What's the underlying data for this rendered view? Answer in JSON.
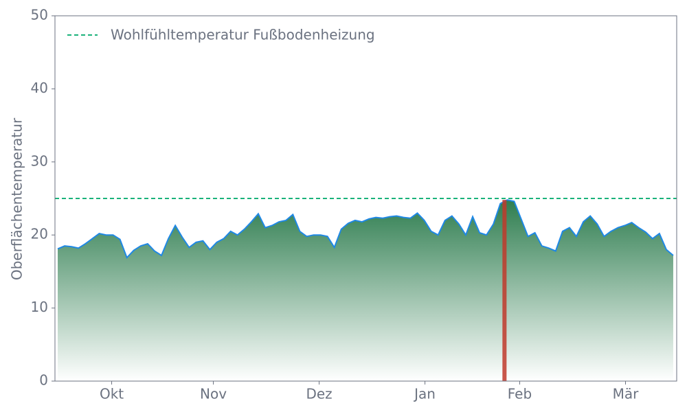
{
  "chart_data": {
    "type": "area-line",
    "ylabel": "Oberflächentemperatur",
    "values": [
      18.1,
      18.5,
      18.4,
      18.2,
      18.8,
      19.5,
      20.2,
      20.0,
      20.0,
      19.4,
      16.9,
      17.9,
      18.5,
      18.8,
      17.8,
      17.2,
      19.5,
      21.3,
      19.7,
      18.3,
      19.0,
      19.2,
      18.0,
      19.0,
      19.5,
      20.5,
      20.0,
      20.8,
      21.8,
      22.9,
      21.0,
      21.3,
      21.8,
      22.0,
      22.8,
      20.5,
      19.8,
      20.0,
      20.0,
      19.8,
      18.3,
      20.8,
      21.6,
      22.0,
      21.8,
      22.2,
      22.4,
      22.3,
      22.5,
      22.6,
      22.4,
      22.3,
      23.0,
      22.0,
      20.5,
      20.0,
      22.0,
      22.6,
      21.5,
      20.0,
      22.5,
      20.3,
      20.0,
      21.5,
      24.3,
      24.8,
      24.6,
      22.2,
      19.8,
      20.3,
      18.5,
      18.2,
      17.8,
      20.5,
      21.0,
      19.8,
      21.8,
      22.6,
      21.5,
      19.8,
      20.5,
      21.0,
      21.3,
      21.7,
      21.0,
      20.4,
      19.5,
      20.2,
      18.0,
      17.2
    ],
    "line_color": "#1f88e5",
    "fill_top": "#2e7d4f",
    "fill_bottom": "#ffffff",
    "xlim": [
      -0.4,
      89.5
    ],
    "xticks": [
      {
        "value": 7.8,
        "label": "Okt"
      },
      {
        "value": 22.5,
        "label": "Nov"
      },
      {
        "value": 37.8,
        "label": "Dez"
      },
      {
        "value": 53.1,
        "label": "Jan"
      },
      {
        "value": 66.8,
        "label": "Feb"
      },
      {
        "value": 82.1,
        "label": "Mär"
      }
    ],
    "ylim": [
      0,
      50
    ],
    "yticks": [
      0,
      10,
      20,
      30,
      40,
      50
    ],
    "grid": false,
    "hline": {
      "value": 25,
      "label": "Wohlfühltemperatur Fußbodenheizung",
      "color": "#1ab27a"
    },
    "marker": {
      "x": 64.6,
      "value": 24.8,
      "color": "#c0392b"
    },
    "legend": "upper left"
  }
}
